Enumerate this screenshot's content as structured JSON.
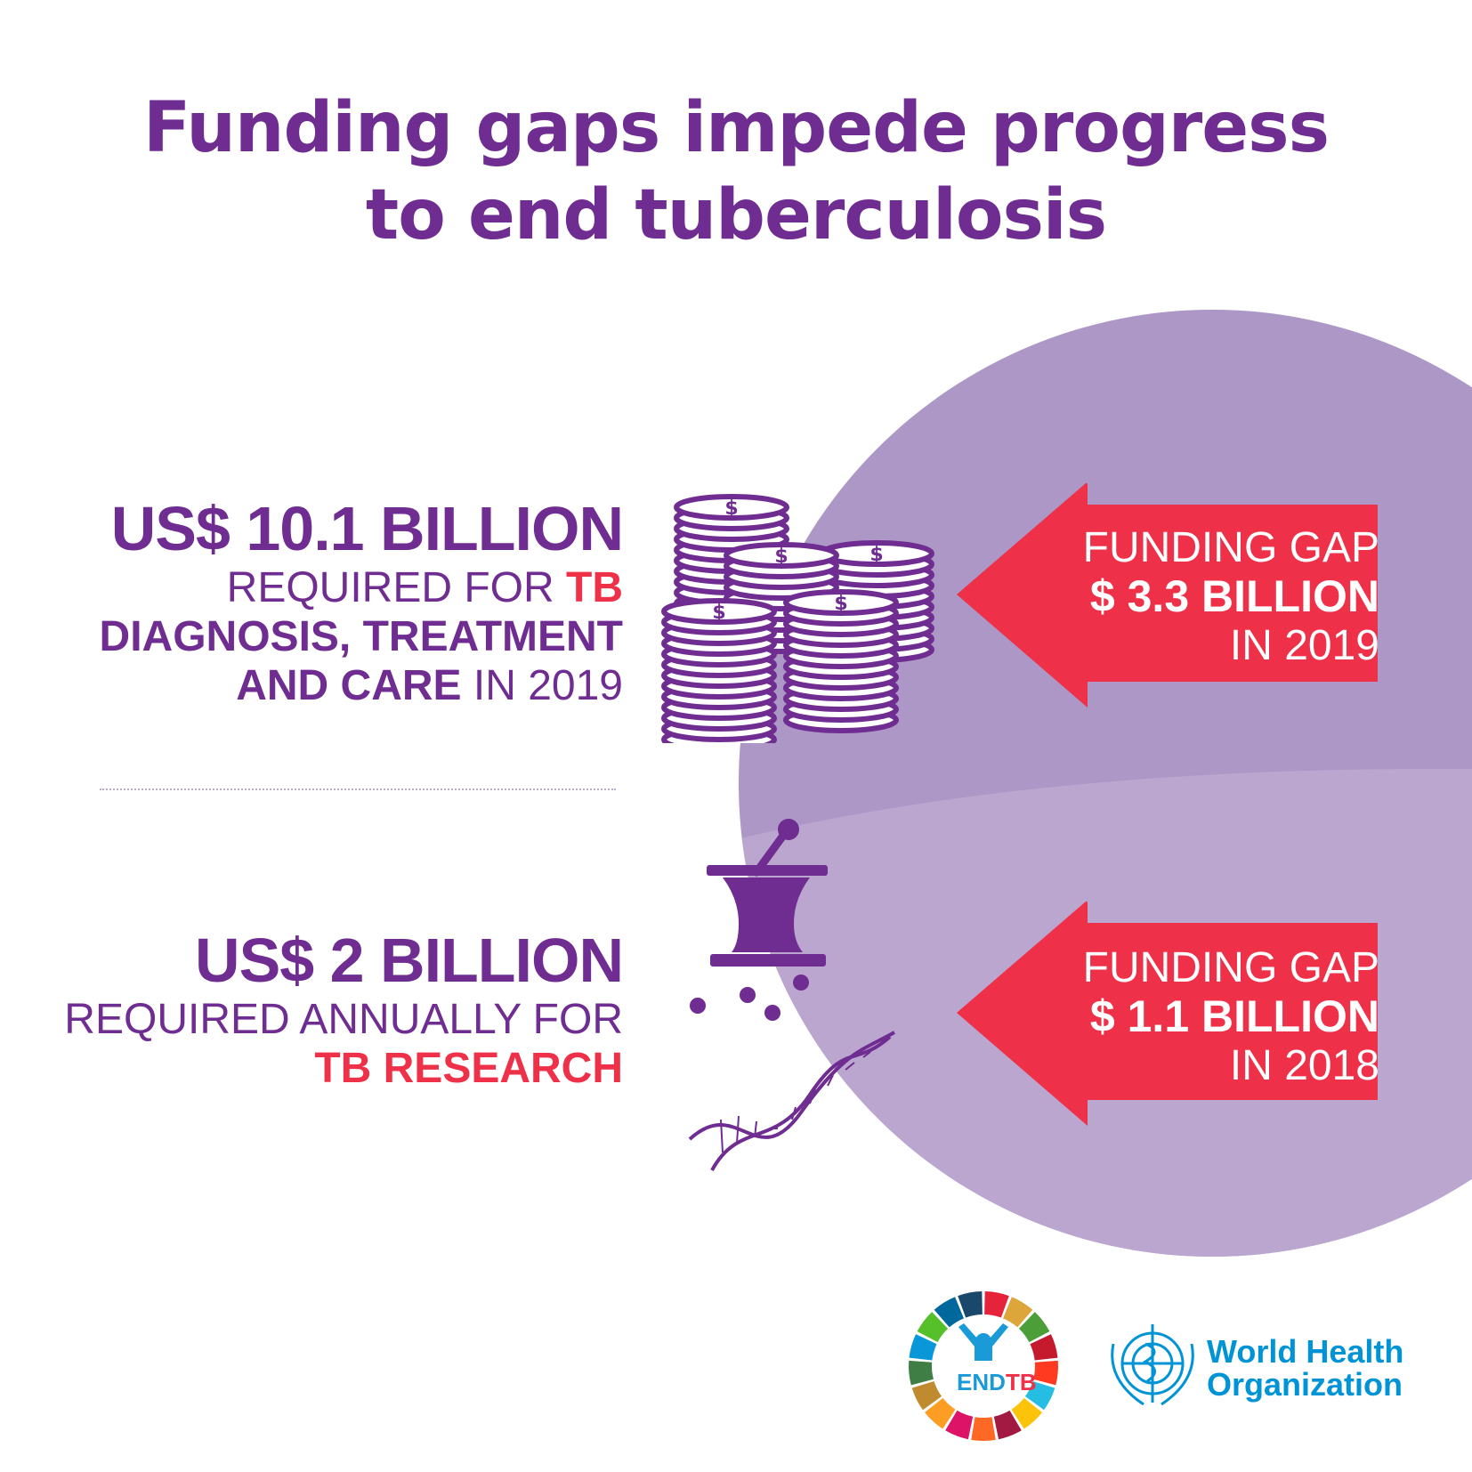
{
  "title": {
    "line1": "Funding gaps impede progress",
    "line2": "to end tuberculosis"
  },
  "colors": {
    "purple": "#6f2c91",
    "red": "#ee3048",
    "circle_top": "#ac97c6",
    "circle_bottom": "#bba6d0",
    "who_blue": "#0093d5"
  },
  "care": {
    "amount": "US$ 10.1 BILLION",
    "line1_a": "REQUIRED FOR ",
    "line1_b": "TB",
    "line2": "DIAGNOSIS, TREATMENT",
    "line3_a": "AND CARE",
    "line3_b": " IN 2019",
    "icon": "coin-stacks-icon",
    "gap": {
      "label": "FUNDING GAP",
      "amount": "$ 3.3 BILLION",
      "year": "IN 2019"
    }
  },
  "research": {
    "amount": "US$ 2 BILLION",
    "line1": "REQUIRED ANNUALLY FOR",
    "line2": "TB RESEARCH",
    "icons": [
      "mortar-pestle-icon",
      "dna-icon"
    ],
    "gap": {
      "label": "FUNDING GAP",
      "amount": "$ 1.1 BILLION",
      "year": "IN 2018"
    }
  },
  "logos": {
    "endtb": {
      "a": "END",
      "b": "TB"
    },
    "who": {
      "line1": "World Health",
      "line2": "Organization"
    }
  }
}
